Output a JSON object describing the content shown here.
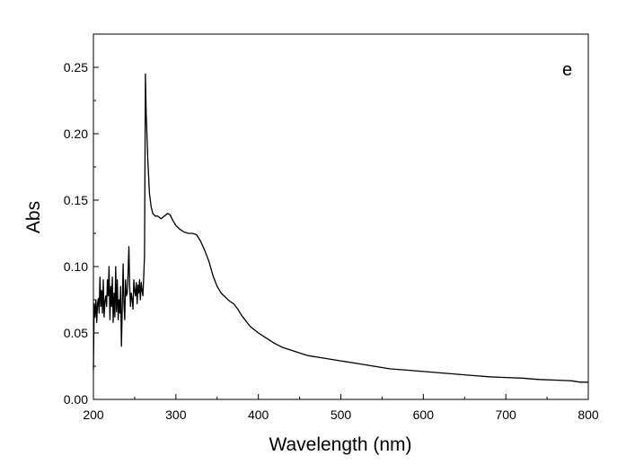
{
  "chart_data": {
    "type": "line",
    "title": "",
    "panel_label": "e",
    "xlabel": "Wavelength (nm)",
    "ylabel": "Abs",
    "xlim": [
      200,
      800
    ],
    "ylim": [
      0.0,
      0.275
    ],
    "x_ticks": [
      200,
      300,
      400,
      500,
      600,
      700,
      800
    ],
    "x_tick_labels": [
      "200",
      "300",
      "400",
      "500",
      "600",
      "700",
      "800"
    ],
    "y_ticks": [
      0.0,
      0.05,
      0.1,
      0.15,
      0.2,
      0.25
    ],
    "y_tick_labels": [
      "0.00",
      "0.05",
      "0.10",
      "0.15",
      "0.20",
      "0.25"
    ],
    "grid": false,
    "legend": "none",
    "line_color": "#000000",
    "series": [
      {
        "x": [
          200,
          201,
          202,
          203,
          204,
          205,
          206,
          207,
          208,
          209,
          210,
          211,
          212,
          213,
          214,
          215,
          216,
          217,
          218,
          219,
          220,
          221,
          222,
          223,
          224,
          225,
          226,
          227,
          228,
          229,
          230,
          231,
          232,
          233,
          234,
          235,
          236,
          237,
          238,
          239,
          240,
          241,
          242,
          243,
          244,
          245,
          246,
          247,
          248,
          249,
          250,
          251,
          252,
          253,
          254,
          255,
          256,
          257,
          258,
          259,
          260,
          261,
          262,
          263,
          264,
          266,
          268,
          270,
          272,
          275,
          278,
          282,
          286,
          290,
          293,
          296,
          300,
          305,
          310,
          315,
          320,
          325,
          330,
          335,
          340,
          345,
          350,
          355,
          360,
          365,
          370,
          375,
          380,
          390,
          400,
          410,
          420,
          430,
          440,
          450,
          460,
          480,
          500,
          520,
          540,
          560,
          580,
          600,
          620,
          640,
          660,
          680,
          700,
          720,
          740,
          760,
          780,
          790,
          800
        ],
        "y": [
          0.022,
          0.072,
          0.062,
          0.075,
          0.058,
          0.072,
          0.076,
          0.065,
          0.092,
          0.07,
          0.082,
          0.065,
          0.09,
          0.062,
          0.074,
          0.078,
          0.07,
          0.09,
          0.078,
          0.1,
          0.06,
          0.085,
          0.07,
          0.092,
          0.058,
          0.08,
          0.062,
          0.1,
          0.066,
          0.09,
          0.06,
          0.075,
          0.065,
          0.085,
          0.04,
          0.068,
          0.102,
          0.072,
          0.06,
          0.09,
          0.078,
          0.08,
          0.095,
          0.115,
          0.085,
          0.07,
          0.08,
          0.075,
          0.068,
          0.09,
          0.082,
          0.078,
          0.088,
          0.072,
          0.086,
          0.08,
          0.09,
          0.075,
          0.088,
          0.082,
          0.078,
          0.092,
          0.108,
          0.245,
          0.215,
          0.18,
          0.155,
          0.145,
          0.14,
          0.138,
          0.138,
          0.136,
          0.138,
          0.14,
          0.139,
          0.135,
          0.131,
          0.128,
          0.126,
          0.125,
          0.125,
          0.124,
          0.119,
          0.112,
          0.104,
          0.093,
          0.085,
          0.08,
          0.077,
          0.074,
          0.072,
          0.068,
          0.063,
          0.055,
          0.05,
          0.046,
          0.042,
          0.039,
          0.037,
          0.035,
          0.033,
          0.031,
          0.029,
          0.027,
          0.025,
          0.023,
          0.022,
          0.021,
          0.02,
          0.019,
          0.018,
          0.017,
          0.0165,
          0.016,
          0.015,
          0.0145,
          0.014,
          0.013,
          0.013
        ]
      }
    ]
  }
}
